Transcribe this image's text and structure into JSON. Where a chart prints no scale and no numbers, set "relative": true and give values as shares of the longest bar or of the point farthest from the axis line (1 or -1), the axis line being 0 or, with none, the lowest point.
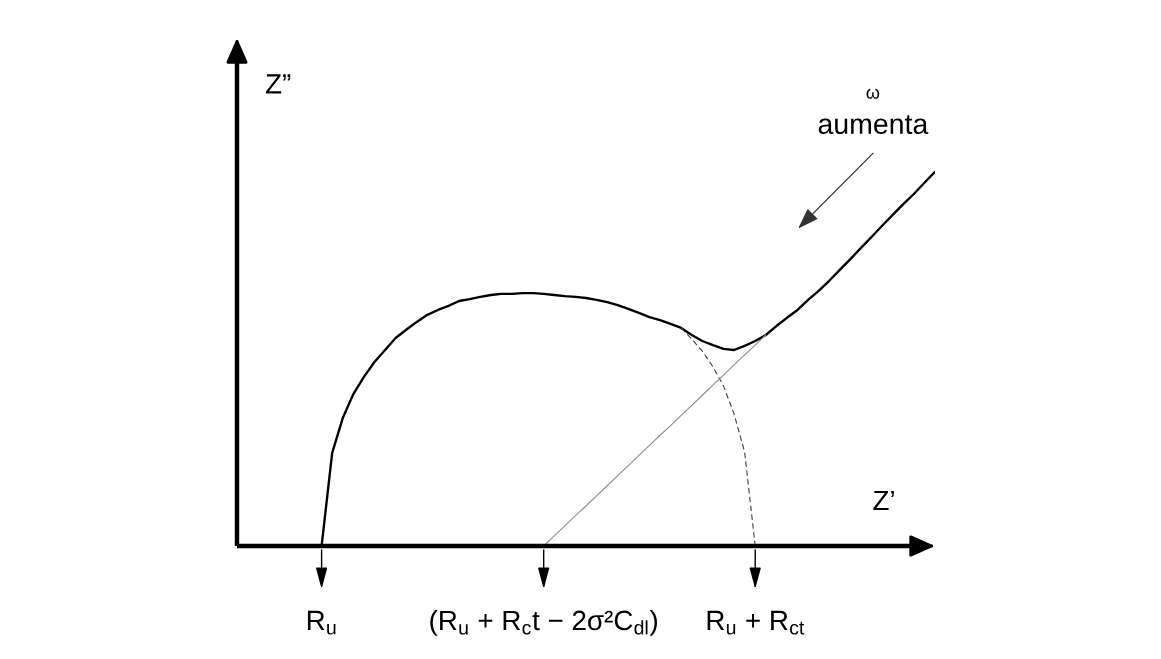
{
  "chart_data": {
    "type": "line",
    "relative": true,
    "xlabel": "Z’",
    "ylabel": "Z”",
    "tick_labels": "x",
    "line_style": "solid",
    "categories": [
      null,
      null,
      null,
      null,
      null,
      null,
      null,
      null,
      "R$_{u}$",
      null,
      null,
      null,
      null,
      null,
      null,
      null,
      null,
      null,
      null,
      null,
      null,
      null,
      null,
      null,
      null,
      null,
      null,
      null,
      null,
      "(R$_{u}$ + R$_{c}$t − 2σ²C$_{dl}$)",
      null,
      null,
      null,
      null,
      null,
      null,
      null,
      null,
      null,
      null,
      null,
      null,
      null,
      null,
      null,
      null,
      null,
      null,
      null,
      "R$_{u}$ + R$_{ct}$",
      null,
      null,
      null,
      null,
      null,
      null,
      null,
      null,
      null,
      null,
      null,
      null,
      null,
      null,
      null,
      null,
      null
    ],
    "series": [
      {
        "color": "#000000",
        "values": [
          null,
          null,
          null,
          null,
          null,
          null,
          null,
          null,
          0,
          0.249,
          0.342,
          0.406,
          0.452,
          0.492,
          0.524,
          0.556,
          0.578,
          0.599,
          0.618,
          0.631,
          0.642,
          0.655,
          0.66,
          0.666,
          0.671,
          0.674,
          0.674,
          0.676,
          0.676,
          0.674,
          0.671,
          0.668,
          0.666,
          0.663,
          0.658,
          0.652,
          0.644,
          0.634,
          0.623,
          0.612,
          0.604,
          0.594,
          0.583,
          0.564,
          0.548,
          0.537,
          0.527,
          0.524,
          0.535,
          0.548,
          0.564,
          0.588,
          0.61,
          0.631,
          0.658,
          0.682,
          0.709,
          0.738,
          0.767,
          0.797,
          0.826,
          0.856,
          0.885,
          0.914,
          0.941,
          0.971,
          1
        ]
      },
      {
        "color": "#404040",
        "line_style": "dashed",
        "values": [
          null,
          null,
          null,
          null,
          null,
          null,
          null,
          null,
          null,
          null,
          null,
          null,
          null,
          null,
          null,
          null,
          null,
          null,
          null,
          null,
          null,
          null,
          null,
          null,
          null,
          null,
          null,
          null,
          null,
          null,
          null,
          null,
          null,
          null,
          null,
          null,
          null,
          null,
          null,
          null,
          null,
          null,
          0.583,
          0.553,
          0.521,
          0.479,
          0.428,
          0.353,
          0.251,
          0,
          null,
          null,
          null,
          null,
          null,
          null,
          null,
          null,
          null,
          null,
          null,
          null,
          null,
          null,
          null,
          null,
          null
        ]
      },
      {
        "color": "#8c8c8c",
        "values": [
          null,
          null,
          null,
          null,
          null,
          null,
          null,
          null,
          null,
          null,
          null,
          null,
          null,
          null,
          null,
          null,
          null,
          null,
          null,
          null,
          null,
          null,
          null,
          null,
          null,
          null,
          null,
          null,
          null,
          0,
          0.027,
          0.054,
          0.081,
          0.107,
          0.134,
          0.161,
          0.188,
          0.215,
          0.242,
          0.269,
          0.296,
          0.322,
          0.349,
          0.376,
          0.403,
          0.43,
          0.457,
          0.484,
          0.511,
          0.537,
          0.564,
          null,
          null,
          null,
          null,
          null,
          null,
          null,
          null,
          null,
          null,
          null,
          null,
          null,
          null,
          null,
          null
        ]
      }
    ],
    "annotations": [
      "ω",
      "aumenta"
    ]
  }
}
